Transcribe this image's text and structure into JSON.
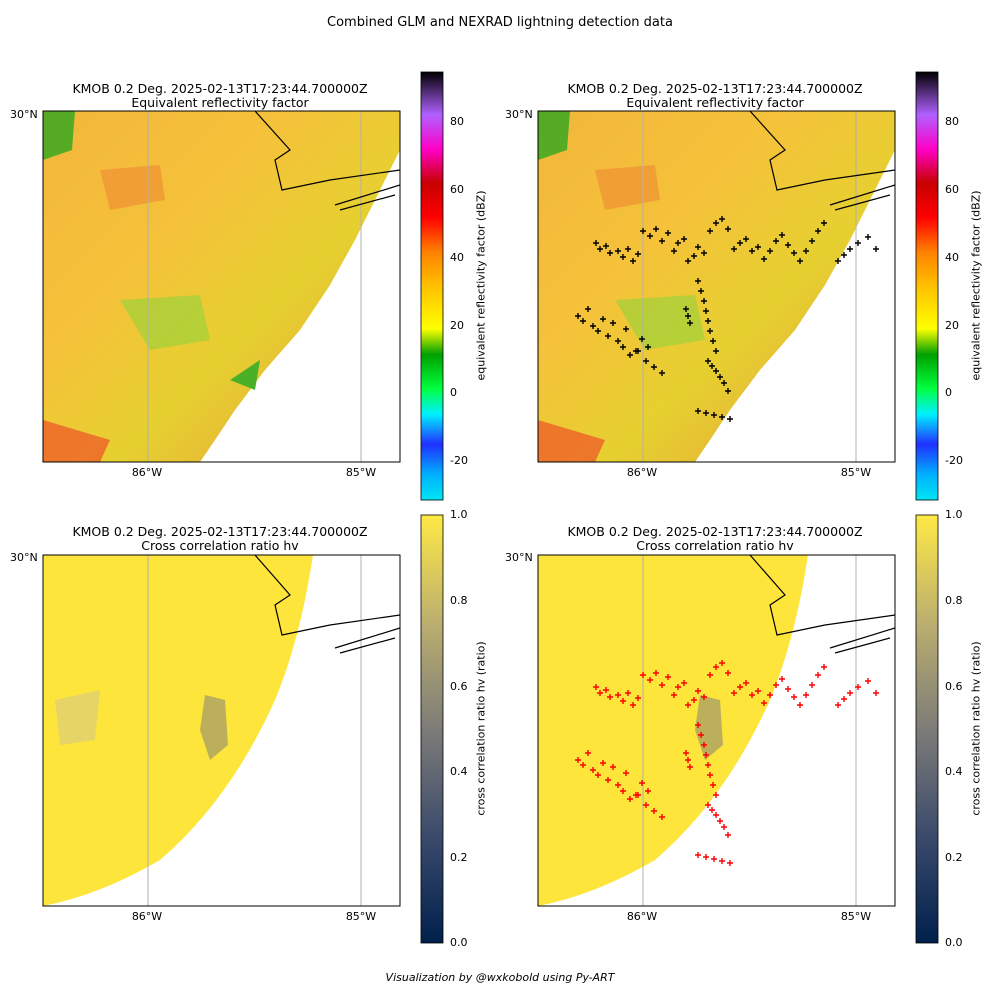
{
  "figure": {
    "suptitle": "Combined GLM and NEXRAD lightning detection data",
    "footer": "Visualization by @wxkobold using Py-ART"
  },
  "colors": {
    "lightning_top": "#000000",
    "lightning_bottom": "#ff0000",
    "coast": "#000000",
    "grid": "#b0b0b0"
  },
  "chart_data": [
    {
      "type": "heatmap",
      "panel": "top-left",
      "title": "KMOB 0.2 Deg. 2025-02-13T17:23:44.700000Z",
      "subtitle": "Equivalent reflectivity factor",
      "field": "reflectivity",
      "xticks": [
        {
          "value": -86,
          "label": "86°W"
        },
        {
          "value": -85,
          "label": "85°W"
        }
      ],
      "yticks": [
        {
          "value": 30,
          "label": "30°N"
        }
      ],
      "colorbar": {
        "label": "equivalent reflectivity factor (dBZ)",
        "range": [
          -30,
          95
        ],
        "ticks": [
          -20,
          0,
          20,
          40,
          60,
          80
        ]
      },
      "lightning": false
    },
    {
      "type": "heatmap",
      "panel": "top-right",
      "title": "KMOB 0.2 Deg. 2025-02-13T17:23:44.700000Z",
      "subtitle": "Equivalent reflectivity factor",
      "field": "reflectivity",
      "xticks": [
        {
          "value": -86,
          "label": "86°W"
        },
        {
          "value": -85,
          "label": "85°W"
        }
      ],
      "yticks": [
        {
          "value": 30,
          "label": "30°N"
        }
      ],
      "colorbar": {
        "label": "equivalent reflectivity factor (dBZ)",
        "range": [
          -30,
          95
        ],
        "ticks": [
          -20,
          0,
          20,
          40,
          60,
          80
        ]
      },
      "lightning": true,
      "lightning_color": "black"
    },
    {
      "type": "heatmap",
      "panel": "bottom-left",
      "title": "KMOB 0.2 Deg. 2025-02-13T17:23:44.700000Z",
      "subtitle": "Cross correlation ratio hv",
      "field": "cross_correlation",
      "xticks": [
        {
          "value": -86,
          "label": "86°W"
        },
        {
          "value": -85,
          "label": "85°W"
        }
      ],
      "yticks": [
        {
          "value": 30,
          "label": "30°N"
        }
      ],
      "colorbar": {
        "label": "cross correlation ratio hv (ratio)",
        "range": [
          0,
          1
        ],
        "ticks": [
          "0.0",
          "0.2",
          "0.4",
          "0.6",
          "0.8",
          "1.0"
        ]
      },
      "lightning": false
    },
    {
      "type": "heatmap",
      "panel": "bottom-right",
      "title": "KMOB 0.2 Deg. 2025-02-13T17:23:44.700000Z",
      "subtitle": "Cross correlation ratio hv",
      "field": "cross_correlation",
      "xticks": [
        {
          "value": -86,
          "label": "86°W"
        },
        {
          "value": -85,
          "label": "85°W"
        }
      ],
      "yticks": [
        {
          "value": 30,
          "label": "30°N"
        }
      ],
      "colorbar": {
        "label": "cross correlation ratio hv (ratio)",
        "range": [
          0,
          1
        ],
        "ticks": [
          "0.0",
          "0.2",
          "0.4",
          "0.6",
          "0.8",
          "1.0"
        ]
      },
      "lightning": true,
      "lightning_color": "red"
    }
  ]
}
